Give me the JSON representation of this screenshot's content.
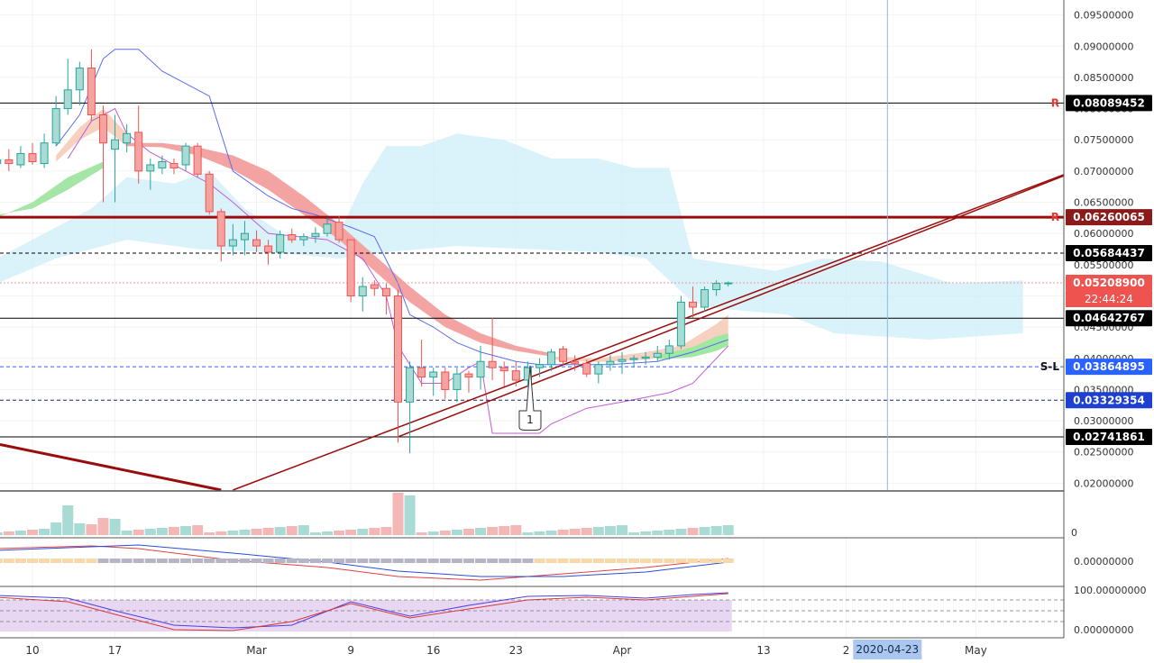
{
  "chart_data": {
    "type": "candlestick",
    "price_axis": {
      "range": [
        0.0189,
        0.0974
      ],
      "ticks": [
        "0.09500000",
        "0.09000000",
        "0.08500000",
        "0.08000000",
        "0.07500000",
        "0.07000000",
        "0.06500000",
        "0.06000000",
        "0.05500000",
        "0.05000000",
        "0.04500000",
        "0.04000000",
        "0.03500000",
        "0.03000000",
        "0.02500000",
        "0.02000000"
      ]
    },
    "time_axis": {
      "labels": [
        {
          "text": "10",
          "day": 0
        },
        {
          "text": "17",
          "day": 7
        },
        {
          "text": "Mar",
          "day": 19
        },
        {
          "text": "9",
          "day": 27
        },
        {
          "text": "16",
          "day": 34
        },
        {
          "text": "23",
          "day": 41
        },
        {
          "text": "Apr",
          "day": 50
        },
        {
          "text": "13",
          "day": 62
        },
        {
          "text": "2",
          "day": 69
        },
        {
          "text": "May",
          "day": 80
        }
      ],
      "cursor_label": "2020-04-23",
      "cursor_day": 72.5
    },
    "levels": [
      {
        "value": 0.08089452,
        "label": "0.08089452",
        "style": "solid",
        "color": "#000000",
        "box": "#000000",
        "marker": "R"
      },
      {
        "value": 0.06260065,
        "label": "0.06260065",
        "style": "thick",
        "color": "#9b0d0d",
        "box": "#8b1a1a",
        "marker": "R"
      },
      {
        "value": 0.05684437,
        "label": "0.05684437",
        "style": "dashed",
        "color": "#000000",
        "box": "#000000",
        "marker": ""
      },
      {
        "value": 0.052089,
        "label": "0.05208900",
        "style": "dotted",
        "color": "#ef9a9a",
        "box": "#ef5350",
        "marker": ""
      },
      {
        "value": 0.04642767,
        "label": "0.04642767",
        "style": "solid",
        "color": "#000000",
        "box": "#000000",
        "marker": ""
      },
      {
        "value": 0.03864895,
        "label": "0.03864895",
        "style": "dashed",
        "color": "#2962ff",
        "box": "#2962ff",
        "marker": "S-L"
      },
      {
        "value": 0.03329354,
        "label": "0.03329354",
        "style": "dashed",
        "color": "#1a237e",
        "box": "#1e40d0",
        "marker": ""
      },
      {
        "value": 0.02741861,
        "label": "0.02741861",
        "style": "solid",
        "color": "#000000",
        "box": "#000000",
        "marker": ""
      }
    ],
    "countdown": "22:44:24",
    "callout": "1",
    "candles": [
      {
        "d": -3,
        "o": 0.0712,
        "h": 0.074,
        "l": 0.069,
        "c": 0.0718
      },
      {
        "d": -2,
        "o": 0.0718,
        "h": 0.0735,
        "l": 0.07,
        "c": 0.0712
      },
      {
        "d": -1,
        "o": 0.071,
        "h": 0.074,
        "l": 0.0705,
        "c": 0.0728
      },
      {
        "d": 0,
        "o": 0.0728,
        "h": 0.0745,
        "l": 0.071,
        "c": 0.0715
      },
      {
        "d": 1,
        "o": 0.0712,
        "h": 0.076,
        "l": 0.0705,
        "c": 0.0745
      },
      {
        "d": 2,
        "o": 0.0745,
        "h": 0.082,
        "l": 0.074,
        "c": 0.08
      },
      {
        "d": 3,
        "o": 0.08,
        "h": 0.088,
        "l": 0.079,
        "c": 0.083
      },
      {
        "d": 4,
        "o": 0.083,
        "h": 0.0875,
        "l": 0.0805,
        "c": 0.0865
      },
      {
        "d": 5,
        "o": 0.0865,
        "h": 0.0895,
        "l": 0.078,
        "c": 0.079
      },
      {
        "d": 6,
        "o": 0.079,
        "h": 0.0805,
        "l": 0.065,
        "c": 0.0745
      },
      {
        "d": 7,
        "o": 0.0735,
        "h": 0.079,
        "l": 0.065,
        "c": 0.075
      },
      {
        "d": 8,
        "o": 0.0745,
        "h": 0.0775,
        "l": 0.073,
        "c": 0.076
      },
      {
        "d": 9,
        "o": 0.0762,
        "h": 0.0805,
        "l": 0.068,
        "c": 0.07
      },
      {
        "d": 10,
        "o": 0.07,
        "h": 0.072,
        "l": 0.067,
        "c": 0.071
      },
      {
        "d": 11,
        "o": 0.0705,
        "h": 0.0725,
        "l": 0.0695,
        "c": 0.0715
      },
      {
        "d": 12,
        "o": 0.0712,
        "h": 0.072,
        "l": 0.0695,
        "c": 0.0705
      },
      {
        "d": 13,
        "o": 0.071,
        "h": 0.0745,
        "l": 0.07,
        "c": 0.074
      },
      {
        "d": 14,
        "o": 0.074,
        "h": 0.0745,
        "l": 0.069,
        "c": 0.0695
      },
      {
        "d": 15,
        "o": 0.0695,
        "h": 0.07,
        "l": 0.063,
        "c": 0.0635
      },
      {
        "d": 16,
        "o": 0.0635,
        "h": 0.064,
        "l": 0.0555,
        "c": 0.058
      },
      {
        "d": 17,
        "o": 0.058,
        "h": 0.0615,
        "l": 0.0565,
        "c": 0.059
      },
      {
        "d": 18,
        "o": 0.059,
        "h": 0.062,
        "l": 0.0565,
        "c": 0.06
      },
      {
        "d": 19,
        "o": 0.059,
        "h": 0.0605,
        "l": 0.057,
        "c": 0.058
      },
      {
        "d": 20,
        "o": 0.058,
        "h": 0.059,
        "l": 0.055,
        "c": 0.057
      },
      {
        "d": 21,
        "o": 0.057,
        "h": 0.0605,
        "l": 0.056,
        "c": 0.0598
      },
      {
        "d": 22,
        "o": 0.0598,
        "h": 0.0608,
        "l": 0.0585,
        "c": 0.059
      },
      {
        "d": 23,
        "o": 0.059,
        "h": 0.06,
        "l": 0.058,
        "c": 0.0595
      },
      {
        "d": 24,
        "o": 0.0595,
        "h": 0.061,
        "l": 0.0585,
        "c": 0.06
      },
      {
        "d": 25,
        "o": 0.06,
        "h": 0.0625,
        "l": 0.0595,
        "c": 0.0615
      },
      {
        "d": 26,
        "o": 0.0618,
        "h": 0.0628,
        "l": 0.0585,
        "c": 0.059
      },
      {
        "d": 27,
        "o": 0.059,
        "h": 0.059,
        "l": 0.049,
        "c": 0.05
      },
      {
        "d": 28,
        "o": 0.05,
        "h": 0.053,
        "l": 0.0475,
        "c": 0.0515
      },
      {
        "d": 29,
        "o": 0.0518,
        "h": 0.0525,
        "l": 0.05,
        "c": 0.0512
      },
      {
        "d": 30,
        "o": 0.0512,
        "h": 0.052,
        "l": 0.047,
        "c": 0.05
      },
      {
        "d": 31,
        "o": 0.05,
        "h": 0.051,
        "l": 0.0265,
        "c": 0.033
      },
      {
        "d": 32,
        "o": 0.033,
        "h": 0.0395,
        "l": 0.0248,
        "c": 0.0385
      },
      {
        "d": 33,
        "o": 0.0385,
        "h": 0.043,
        "l": 0.0355,
        "c": 0.037
      },
      {
        "d": 34,
        "o": 0.037,
        "h": 0.0385,
        "l": 0.034,
        "c": 0.0378
      },
      {
        "d": 35,
        "o": 0.0378,
        "h": 0.0385,
        "l": 0.0335,
        "c": 0.035
      },
      {
        "d": 36,
        "o": 0.035,
        "h": 0.0385,
        "l": 0.033,
        "c": 0.0375
      },
      {
        "d": 37,
        "o": 0.0375,
        "h": 0.038,
        "l": 0.0345,
        "c": 0.037
      },
      {
        "d": 38,
        "o": 0.037,
        "h": 0.042,
        "l": 0.035,
        "c": 0.0395
      },
      {
        "d": 39,
        "o": 0.0395,
        "h": 0.0465,
        "l": 0.0365,
        "c": 0.0385
      },
      {
        "d": 40,
        "o": 0.0385,
        "h": 0.0395,
        "l": 0.0355,
        "c": 0.038
      },
      {
        "d": 41,
        "o": 0.038,
        "h": 0.0395,
        "l": 0.0355,
        "c": 0.0365
      },
      {
        "d": 42,
        "o": 0.0365,
        "h": 0.0395,
        "l": 0.0355,
        "c": 0.0385
      },
      {
        "d": 43,
        "o": 0.0385,
        "h": 0.04,
        "l": 0.037,
        "c": 0.039
      },
      {
        "d": 44,
        "o": 0.039,
        "h": 0.0415,
        "l": 0.038,
        "c": 0.041
      },
      {
        "d": 45,
        "o": 0.0415,
        "h": 0.042,
        "l": 0.039,
        "c": 0.0395
      },
      {
        "d": 46,
        "o": 0.0395,
        "h": 0.0405,
        "l": 0.038,
        "c": 0.0392
      },
      {
        "d": 47,
        "o": 0.0392,
        "h": 0.0398,
        "l": 0.037,
        "c": 0.0375
      },
      {
        "d": 48,
        "o": 0.0375,
        "h": 0.0395,
        "l": 0.036,
        "c": 0.039
      },
      {
        "d": 49,
        "o": 0.039,
        "h": 0.0405,
        "l": 0.038,
        "c": 0.0395
      },
      {
        "d": 50,
        "o": 0.0395,
        "h": 0.041,
        "l": 0.0375,
        "c": 0.0398
      },
      {
        "d": 51,
        "o": 0.0398,
        "h": 0.0405,
        "l": 0.0385,
        "c": 0.04
      },
      {
        "d": 52,
        "o": 0.04,
        "h": 0.041,
        "l": 0.039,
        "c": 0.0402
      },
      {
        "d": 53,
        "o": 0.0402,
        "h": 0.042,
        "l": 0.0395,
        "c": 0.0408
      },
      {
        "d": 54,
        "o": 0.0408,
        "h": 0.043,
        "l": 0.0398,
        "c": 0.042
      },
      {
        "d": 55,
        "o": 0.042,
        "h": 0.05,
        "l": 0.0415,
        "c": 0.049
      },
      {
        "d": 56,
        "o": 0.049,
        "h": 0.0515,
        "l": 0.0465,
        "c": 0.0482
      },
      {
        "d": 57,
        "o": 0.0482,
        "h": 0.0515,
        "l": 0.0475,
        "c": 0.051
      },
      {
        "d": 58,
        "o": 0.051,
        "h": 0.0525,
        "l": 0.05,
        "c": 0.052
      },
      {
        "d": 59,
        "o": 0.052,
        "h": 0.0523,
        "l": 0.0515,
        "c": 0.05208
      }
    ]
  }
}
